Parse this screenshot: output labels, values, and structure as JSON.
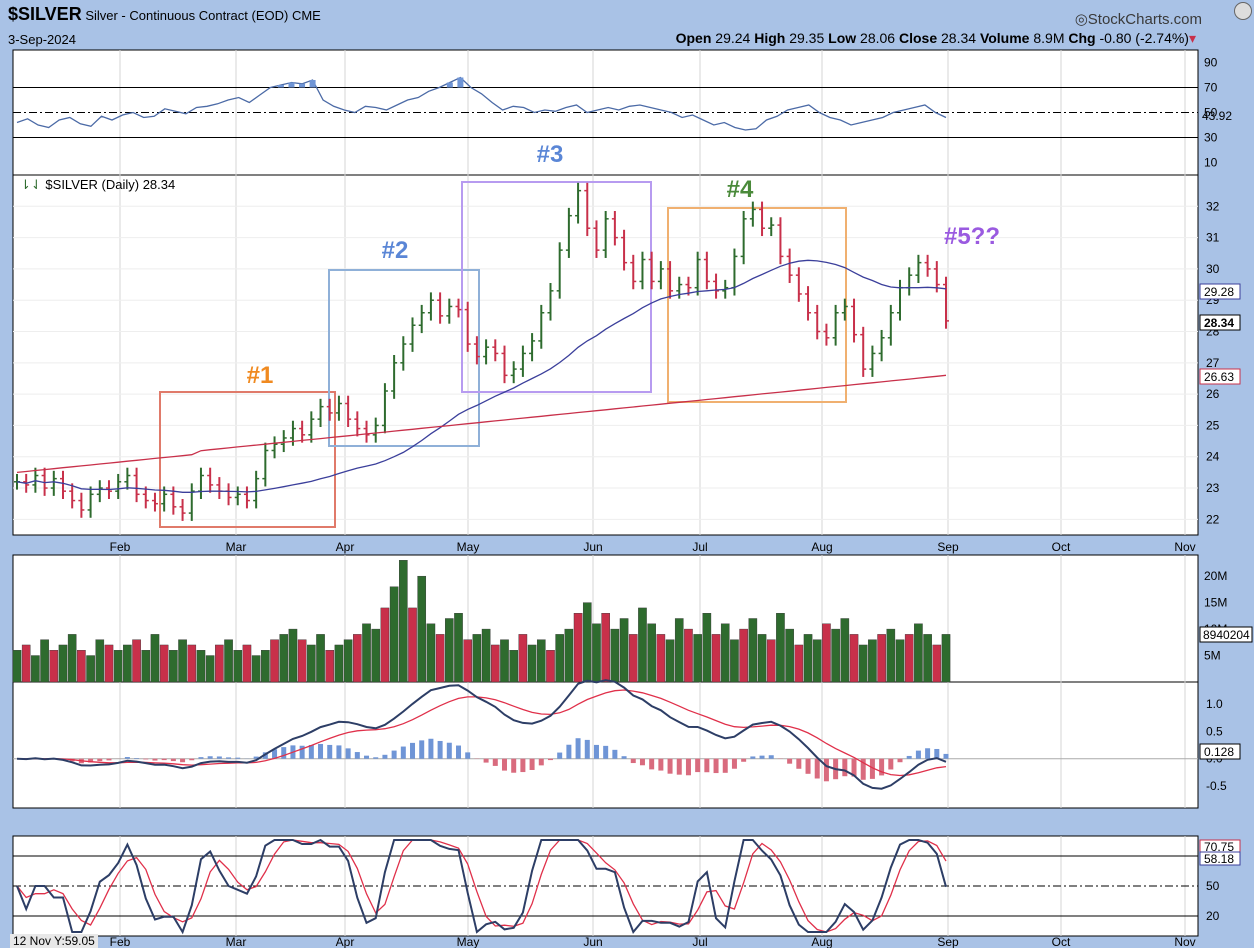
{
  "header": {
    "symbol": "$SILVER",
    "name": "Silver - Continuous Contract (EOD)",
    "exchange": "CME",
    "date": "3-Sep-2024",
    "brand": "StockCharts.com",
    "open_label": "Open",
    "open": "29.24",
    "high_label": "High",
    "high": "29.35",
    "low_label": "Low",
    "low": "28.06",
    "close_label": "Close",
    "close": "28.34",
    "volume_label": "Volume",
    "volume": "8.9M",
    "chg_label": "Chg",
    "chg": "-0.80 (-2.74%)",
    "chg_marker": "▾"
  },
  "cursor_readout": "12 Nov Y:59.05",
  "colors": {
    "up": "#2e6b2e",
    "down": "#c8304a",
    "sma50": "#3b3f9b",
    "sma200": "#c8304a",
    "rsi": "#4b6aa6",
    "rsi_fill": "#6f95d6",
    "macd": "#2d3e66",
    "signal": "#e0304a",
    "hist_pos": "#6f95d6",
    "hist_neg": "#d96b7e"
  },
  "chart_data": [
    {
      "type": "line",
      "panel": "rsi",
      "series": [
        {
          "values": [
            42,
            45,
            40,
            38,
            44,
            46,
            41,
            39,
            47,
            44,
            48,
            50,
            46,
            47,
            53,
            51,
            49,
            54,
            55,
            57,
            60,
            62,
            58,
            64,
            70,
            72,
            74,
            73,
            76,
            60,
            55,
            52,
            50,
            55,
            54,
            52,
            56,
            60,
            62,
            67,
            70,
            74,
            78,
            70,
            65,
            58,
            52,
            55,
            54,
            50,
            52,
            51,
            54,
            56,
            50,
            52,
            54,
            52,
            55,
            56,
            54,
            52,
            50,
            46,
            48,
            44,
            40,
            42,
            38,
            36,
            37,
            44,
            47,
            52,
            54,
            56,
            50,
            46,
            44,
            40,
            42,
            44,
            46,
            50,
            52,
            54,
            56,
            50,
            46
          ]
        }
      ],
      "yticks": [
        90,
        70,
        50,
        30,
        10
      ],
      "ylim": [
        0,
        100
      ],
      "levels": [
        70,
        30
      ],
      "last_label": "43.92"
    },
    {
      "type": "bar",
      "panel": "price",
      "title": "$SILVER (Daily) 28.34",
      "x_ticks": [
        "Feb",
        "Mar",
        "Apr",
        "May",
        "Jun",
        "Jul",
        "Aug",
        "Sep",
        "Oct",
        "Nov"
      ],
      "yticks": [
        32,
        31,
        30,
        29,
        28,
        27,
        26,
        25,
        24,
        23,
        22
      ],
      "ylim": [
        21.5,
        33
      ],
      "closes": [
        23.2,
        23.1,
        23.4,
        23.0,
        23.3,
        22.9,
        22.6,
        22.3,
        22.8,
        23.0,
        22.9,
        23.2,
        23.4,
        22.8,
        22.6,
        22.5,
        22.8,
        22.4,
        22.2,
        22.9,
        23.4,
        23.1,
        22.9,
        22.7,
        22.8,
        22.6,
        23.3,
        24.2,
        24.4,
        24.6,
        24.9,
        24.7,
        25.2,
        25.6,
        25.4,
        25.7,
        25.2,
        24.9,
        24.7,
        25.0,
        26.1,
        27.0,
        27.6,
        28.2,
        28.6,
        29.0,
        28.5,
        28.8,
        28.7,
        27.6,
        27.2,
        27.5,
        27.3,
        26.6,
        26.8,
        27.3,
        27.7,
        28.6,
        29.3,
        30.6,
        31.7,
        32.5,
        31.3,
        30.6,
        31.6,
        31.0,
        30.2,
        29.6,
        30.3,
        29.6,
        30.0,
        29.3,
        29.5,
        29.4,
        30.3,
        29.6,
        29.3,
        29.4,
        30.4,
        31.6,
        31.9,
        31.3,
        31.4,
        30.4,
        29.8,
        29.2,
        28.6,
        28.0,
        27.8,
        28.6,
        28.8,
        27.9,
        26.8,
        27.3,
        27.8,
        28.6,
        29.4,
        29.8,
        30.2,
        30.0,
        29.5,
        28.34
      ],
      "series": [
        {
          "name": "",
          "values": "sma50"
        },
        {
          "name": "",
          "values": "sma200"
        }
      ],
      "last_labels": [
        "29.28",
        "28.34",
        "26.63"
      ],
      "annotations": [
        "#1",
        "#2",
        "#3",
        "#4",
        "#5??"
      ]
    },
    {
      "type": "bar",
      "panel": "volume",
      "yticks_labels": [
        "20M",
        "15M",
        "10M",
        "5M"
      ],
      "ylim": [
        0,
        24
      ],
      "last_label": "8940204",
      "values": [
        6,
        7,
        5,
        8,
        6,
        7,
        9,
        6,
        5,
        8,
        7,
        6,
        7,
        8,
        6,
        9,
        7,
        6,
        8,
        7,
        6,
        5,
        7,
        8,
        6,
        7,
        5,
        6,
        8,
        9,
        10,
        8,
        7,
        9,
        6,
        7,
        8,
        9,
        11,
        10,
        14,
        18,
        23,
        14,
        20,
        11,
        9,
        12,
        13,
        8,
        9,
        10,
        7,
        8,
        6,
        9,
        7,
        8,
        6,
        9,
        10,
        13,
        15,
        11,
        13,
        10,
        12,
        9,
        14,
        11,
        9,
        8,
        12,
        10,
        9,
        13,
        9,
        11,
        8,
        10,
        12,
        9,
        8,
        13,
        10,
        7,
        9,
        8,
        11,
        10,
        12,
        9,
        7,
        8,
        9,
        10,
        8,
        9,
        11,
        9,
        7,
        9
      ]
    },
    {
      "type": "line",
      "panel": "macd",
      "yticks": [
        1.0,
        0.5,
        0,
        -0.5
      ],
      "ylim": [
        -0.9,
        1.4
      ],
      "last_label": "0.128"
    },
    {
      "type": "line",
      "panel": "stoch",
      "yticks": [
        80,
        50,
        20
      ],
      "ylim": [
        0,
        100
      ],
      "levels": [
        80,
        50,
        20
      ],
      "last_labels": [
        "70.75",
        "58.18"
      ]
    }
  ]
}
